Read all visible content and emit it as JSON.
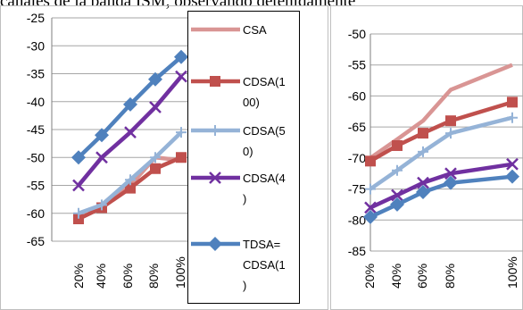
{
  "header_text": "canales de la banda ISM, observando detenidamente",
  "chart_data": [
    {
      "type": "line",
      "categories": [
        "20%",
        "40%",
        "60%",
        "80%",
        "100%"
      ],
      "ylim": [
        -65,
        -25
      ],
      "yticks": [
        "-25",
        "-30",
        "-35",
        "-40",
        "-45",
        "-50",
        "-55",
        "-60",
        "-65"
      ],
      "grid": true,
      "legend_position": "right",
      "legend": [
        "CSA",
        "CDSA(1",
        "00)",
        "CDSA(5",
        "0)",
        "CDSA(4",
        ")",
        "TDSA=",
        "CDSA(1",
        ")"
      ],
      "series": [
        {
          "name": "CSA",
          "color": "#d99594",
          "marker": "none",
          "values": [
            -61,
            -59,
            -55,
            -50,
            -50.5
          ]
        },
        {
          "name": "CDSA(100)",
          "color": "#c0504d",
          "marker": "square",
          "values": [
            -61,
            -59,
            -55.5,
            -52,
            -50
          ]
        },
        {
          "name": "CDSA(50)",
          "color": "#95b3d7",
          "marker": "plus",
          "values": [
            -60,
            -58.5,
            -54,
            -50,
            -45.5
          ]
        },
        {
          "name": "CDSA(4)",
          "color": "#7030a0",
          "marker": "x",
          "values": [
            -55,
            -50,
            -45.5,
            -41,
            -35.5
          ]
        },
        {
          "name": "TDSA=CDSA(1)",
          "color": "#4f81bd",
          "marker": "diamond",
          "values": [
            -50,
            -46,
            -40.5,
            -36,
            -32
          ]
        }
      ]
    },
    {
      "type": "line",
      "categories": [
        "20%",
        "40%",
        "60%",
        "80%",
        "100%"
      ],
      "ylim": [
        -85,
        -50
      ],
      "yticks": [
        "-50",
        "-55",
        "-60",
        "-65",
        "-70",
        "-75",
        "-80",
        "-85"
      ],
      "grid": true,
      "series": [
        {
          "name": "CSA",
          "color": "#d99594",
          "marker": "none",
          "values": [
            -70,
            -67,
            -64,
            -59,
            -55
          ]
        },
        {
          "name": "CDSA(100)",
          "color": "#c0504d",
          "marker": "square",
          "values": [
            -70.5,
            -68,
            -66,
            -64,
            -61
          ]
        },
        {
          "name": "CDSA(50)",
          "color": "#95b3d7",
          "marker": "plus",
          "values": [
            -75,
            -72,
            -69,
            -66,
            -63.5
          ]
        },
        {
          "name": "CDSA(4)",
          "color": "#7030a0",
          "marker": "x",
          "values": [
            -78,
            -76,
            -74,
            -72.5,
            -71
          ]
        },
        {
          "name": "TDSA=CDSA(1)",
          "color": "#4f81bd",
          "marker": "diamond",
          "values": [
            -79.5,
            -77.5,
            -75.5,
            -74,
            -73
          ]
        }
      ]
    }
  ]
}
